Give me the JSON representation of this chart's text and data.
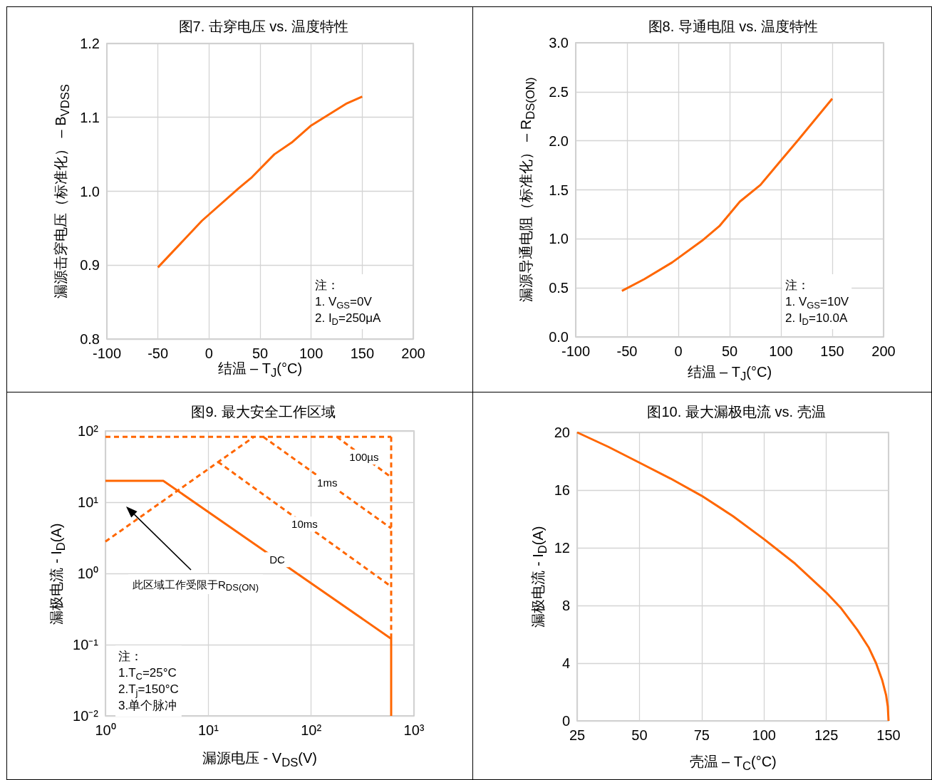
{
  "chart_data": [
    {
      "type": "line",
      "title": "图7. 击穿电压 vs. 温度特性",
      "xlabel": "结温 – T$_{J}$(°C)",
      "ylabel": "漏源击穿电压（标准化） – B$_{VDSS}$",
      "x": [
        -50,
        -7,
        29,
        42,
        64,
        81,
        100,
        135,
        150
      ],
      "series": [
        {
          "color": "#ff6600",
          "values": [
            0.897,
            0.96,
            1.004,
            1.019,
            1.05,
            1.066,
            1.089,
            1.119,
            1.128
          ]
        }
      ],
      "xlim": [
        -100,
        200
      ],
      "xticks": [
        -100,
        -50,
        0,
        50,
        100,
        150,
        200
      ],
      "ylim": [
        0.8,
        1.2
      ],
      "yticks": [
        0.8,
        0.9,
        {
          "value": 1,
          "label": "1.0"
        },
        1.1,
        1.2
      ],
      "grid": true,
      "marker": "none",
      "line_style": "solid",
      "legend": false,
      "annotations": [
        "注：",
        "1. V$_{GS}$=0V",
        "2. I$_{D}$=250μA"
      ]
    },
    {
      "type": "line",
      "title": "图8. 导通电阻 vs. 温度特性",
      "xlabel": "结温 – T$_{J}$(°C)",
      "ylabel": "漏源导通电阻（标准化） – R$_{DS(ON)}$",
      "x": [
        -55,
        -33,
        -6,
        23,
        40,
        60,
        80,
        100,
        117,
        150
      ],
      "series": [
        {
          "color": "#ff6600",
          "values": [
            0.47,
            0.59,
            0.76,
            0.98,
            1.13,
            1.38,
            1.55,
            1.8,
            2.01,
            2.43
          ]
        }
      ],
      "xlim": [
        -100,
        200
      ],
      "xticks": [
        -100,
        -50,
        0,
        50,
        100,
        150,
        200
      ],
      "ylim": [
        0,
        3
      ],
      "yticks": [
        {
          "value": 0,
          "label": "0.0"
        },
        0.5,
        {
          "value": 1,
          "label": "1.0"
        },
        1.5,
        {
          "value": 2,
          "label": "2.0"
        },
        2.5,
        {
          "value": 3,
          "label": "3.0"
        }
      ],
      "grid": true,
      "marker": "none",
      "line_style": "solid",
      "legend": false,
      "annotations": [
        "注：",
        "1. V$_{GS}$=10V",
        "2. I$_{D}$=10.0A"
      ]
    },
    {
      "type": "line",
      "title": "图9. 最大安全工作区域",
      "xlabel": "漏源电压 - V$_{DS}$(V)",
      "ylabel": "漏极电流 - I$_{D}$(A)",
      "series": [
        {
          "color": "#ff6600",
          "line_style": "dashed",
          "x": [
            1,
            27.7
          ],
          "values": [
            2.8,
            82.5
          ]
        },
        {
          "color": "#ff6600",
          "line_style": "dashed",
          "x": [
            1,
            600
          ],
          "values": [
            82.5,
            82.5
          ]
        },
        {
          "name": "100µs",
          "color": "#ff6600",
          "line_style": "dashed",
          "x": [
            178,
            600
          ],
          "values": [
            82.5,
            22.4
          ]
        },
        {
          "name": "1ms",
          "color": "#ff6600",
          "line_style": "dashed",
          "x": [
            34.3,
            600
          ],
          "values": [
            82.5,
            4.3
          ]
        },
        {
          "name": "10ms",
          "color": "#ff6600",
          "line_style": "dashed",
          "x": [
            12.4,
            600
          ],
          "values": [
            36.9,
            0.655
          ]
        },
        {
          "color": "#ff6600",
          "line_style": "dashed",
          "x": [
            600,
            600
          ],
          "values": [
            82.5,
            0.121
          ]
        },
        {
          "name": "DC",
          "color": "#ff6600",
          "line_style": "solid",
          "x": [
            1,
            3.65,
            600,
            600
          ],
          "values": [
            20,
            20,
            0.121,
            0.01
          ]
        }
      ],
      "log": "xy",
      "xlim": [
        1,
        1000
      ],
      "xticks": [
        {
          "value": 1,
          "label": "10⁰"
        },
        {
          "value": 10,
          "label": "10¹"
        },
        {
          "value": 100,
          "label": "10²"
        },
        {
          "value": 1000,
          "label": "10³"
        }
      ],
      "ylim": [
        0.01,
        100
      ],
      "yticks": [
        {
          "value": 0.01,
          "label": "10⁻²"
        },
        {
          "value": 0.1,
          "label": "10⁻¹"
        },
        {
          "value": 1,
          "label": "10⁰"
        },
        {
          "value": 10,
          "label": "10¹"
        },
        {
          "value": 100,
          "label": "10²"
        }
      ],
      "grid": true,
      "marker": "none",
      "legend": false,
      "annotations": [
        "此区域工作受限于R$_{DS(ON)}$",
        "注：",
        "1.T$_{C}$=25°C",
        "2.T$_{j}$=150°C",
        "3.单个脉冲"
      ]
    },
    {
      "type": "line",
      "title": "图10. 最大漏极电流 vs. 壳温",
      "xlabel": "壳温 – T$_{C}$(°C)",
      "ylabel": "漏极电流 - I$_{D}$(A)",
      "x": [
        25,
        37.5,
        50,
        62.5,
        75,
        87.5,
        100,
        112.5,
        125,
        131,
        137.5,
        142,
        145,
        147.5,
        149,
        149.7,
        150
      ],
      "series": [
        {
          "color": "#ff6600",
          "values": [
            20,
            19,
            17.9,
            16.8,
            15.6,
            14.2,
            12.6,
            10.9,
            8.9,
            7.8,
            6.3,
            5.1,
            4,
            2.8,
            1.8,
            1,
            0
          ]
        }
      ],
      "xlim": [
        25,
        150
      ],
      "xticks": [
        25,
        50,
        75,
        100,
        125,
        150
      ],
      "ylim": [
        0,
        20
      ],
      "yticks": [
        0,
        4,
        8,
        12,
        16,
        20
      ],
      "grid": true,
      "marker": "none",
      "line_style": "solid",
      "legend": false
    }
  ]
}
